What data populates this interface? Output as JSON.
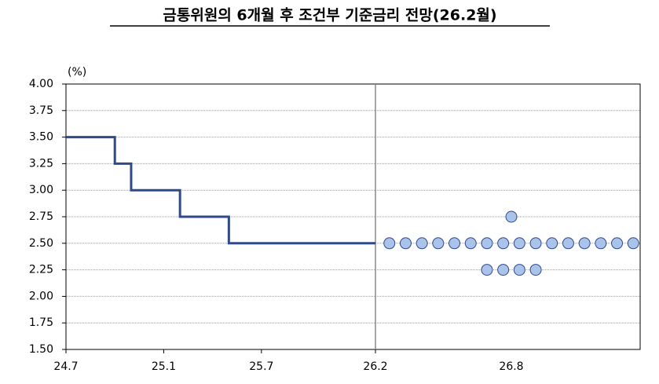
{
  "chart_data": {
    "type": "step-dot",
    "title": "금통위원의 6개월 후 조건부 기준금리 전망(26.2월)",
    "y_unit": "(%)",
    "ylim": [
      1.5,
      4.0
    ],
    "yticks": [
      {
        "value": 1.5,
        "label": "1.50"
      },
      {
        "value": 1.75,
        "label": "1.75"
      },
      {
        "value": 2.0,
        "label": "2.00"
      },
      {
        "value": 2.25,
        "label": "2.25"
      },
      {
        "value": 2.5,
        "label": "2.50"
      },
      {
        "value": 2.75,
        "label": "2.75"
      },
      {
        "value": 3.0,
        "label": "3.00"
      },
      {
        "value": 3.25,
        "label": "3.25"
      },
      {
        "value": 3.5,
        "label": "3.50"
      },
      {
        "value": 3.75,
        "label": "3.75"
      },
      {
        "value": 4.0,
        "label": "4.00"
      }
    ],
    "xlim": [
      "24.7",
      "26.2"
    ],
    "xticks": [
      "24.7",
      "25.1",
      "25.7",
      "26.2"
    ],
    "grid": true,
    "step": {
      "x": [
        "24.7",
        "24.10",
        "24.11",
        "25.2",
        "25.5",
        "26.2"
      ],
      "values": [
        3.5,
        3.25,
        3.0,
        2.75,
        2.5,
        2.5
      ],
      "color": "#2e4a8a"
    },
    "dots": {
      "category": "26.8",
      "values": [
        2.75,
        2.5,
        2.5,
        2.5,
        2.5,
        2.5,
        2.5,
        2.5,
        2.5,
        2.5,
        2.5,
        2.5,
        2.5,
        2.5,
        2.5,
        2.5,
        2.5,
        2.25,
        2.25,
        2.25,
        2.25
      ],
      "color": "#a9c3ea"
    }
  }
}
